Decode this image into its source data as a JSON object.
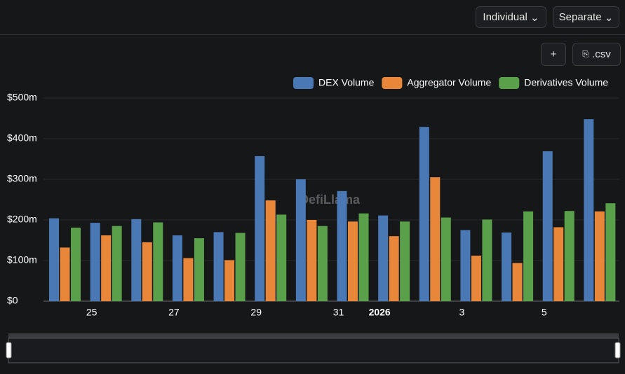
{
  "controls": {
    "view": "Individual",
    "mode": "Separate",
    "add": "+",
    "csv": ".csv"
  },
  "watermark": "DefiLlama",
  "chart_data": {
    "type": "bar",
    "categories": [
      null,
      "25",
      null,
      "27",
      null,
      "29",
      null,
      "31",
      "2026",
      null,
      "3",
      null,
      "5",
      null
    ],
    "series": [
      {
        "name": "DEX Volume",
        "color": "#4a78b5",
        "values": [
          204,
          193,
          202,
          162,
          170,
          357,
          300,
          271,
          211,
          429,
          175,
          169,
          369,
          448
        ]
      },
      {
        "name": "Aggregator Volume",
        "color": "#e8873a",
        "values": [
          132,
          162,
          145,
          106,
          101,
          248,
          200,
          196,
          160,
          305,
          112,
          94,
          182,
          221
        ]
      },
      {
        "name": "Derivatives Volume",
        "color": "#5aa04a",
        "values": [
          181,
          185,
          194,
          155,
          168,
          213,
          185,
          216,
          196,
          206,
          201,
          221,
          222,
          241
        ]
      }
    ],
    "ylim": [
      0,
      500
    ],
    "yticks": [
      {
        "value": 0,
        "label": "$0"
      },
      {
        "value": 100,
        "label": "$100m"
      },
      {
        "value": 200,
        "label": "$200m"
      },
      {
        "value": 300,
        "label": "$300m"
      },
      {
        "value": 400,
        "label": "$400m"
      },
      {
        "value": 500,
        "label": "$500m"
      }
    ],
    "grid": true
  }
}
